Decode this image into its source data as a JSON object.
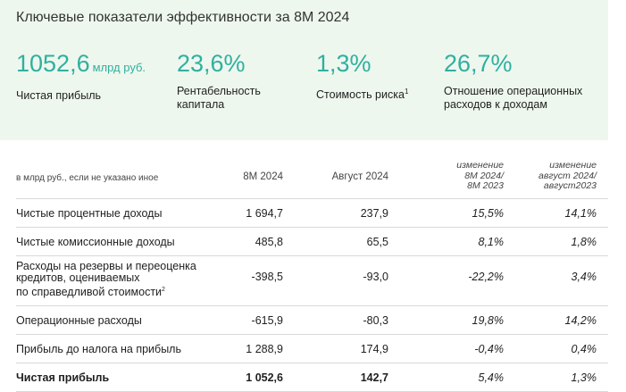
{
  "panel": {
    "title": "Ключевые показатели эффективности за 8М 2024",
    "kpis": [
      {
        "value": "1052,6",
        "unit": "млрд руб.",
        "label": "Чистая прибыль",
        "footnote": ""
      },
      {
        "value": "23,6%",
        "unit": "",
        "label": "Рентабельность\nкапитала",
        "footnote": ""
      },
      {
        "value": "1,3%",
        "unit": "",
        "label": "Стоимость риска",
        "footnote": "1"
      },
      {
        "value": "26,7%",
        "unit": "",
        "label": "Отношение операционных\nрасходов к доходам",
        "footnote": ""
      }
    ]
  },
  "table": {
    "headers": {
      "label": "в млрд руб., если не указано иное",
      "col1": "8М 2024",
      "col2": "Август 2024",
      "col3": "изменение\n8М 2024/\n8М 2023",
      "col4": "изменение\nавгуст 2024/\nавгуст2023"
    },
    "rows": [
      {
        "label": "Чистые процентные доходы",
        "footnote": "",
        "c1": "1 694,7",
        "c2": "237,9",
        "c3": "15,5%",
        "c4": "14,1%"
      },
      {
        "label": "Чистые комиссионные доходы",
        "footnote": "",
        "c1": "485,8",
        "c2": "65,5",
        "c3": "8,1%",
        "c4": "1,8%"
      },
      {
        "label": "Расходы на резервы и переоценка\nкредитов, оцениваемых\nпо справедливой стоимости",
        "footnote": "2",
        "c1": "-398,5",
        "c2": "-93,0",
        "c3": "-22,2%",
        "c4": "3,4%"
      },
      {
        "label": "Операционные расходы",
        "footnote": "",
        "c1": "-615,9",
        "c2": "-80,3",
        "c3": "19,8%",
        "c4": "14,2%"
      },
      {
        "label": "Прибыль до налога на прибыль",
        "footnote": "",
        "c1": "1 288,9",
        "c2": "174,9",
        "c3": "-0,4%",
        "c4": "0,4%"
      },
      {
        "label": "Чистая прибыль",
        "footnote": "",
        "c1": "1 052,6",
        "c2": "142,7",
        "c3": "5,4%",
        "c4": "1,3%"
      }
    ]
  }
}
